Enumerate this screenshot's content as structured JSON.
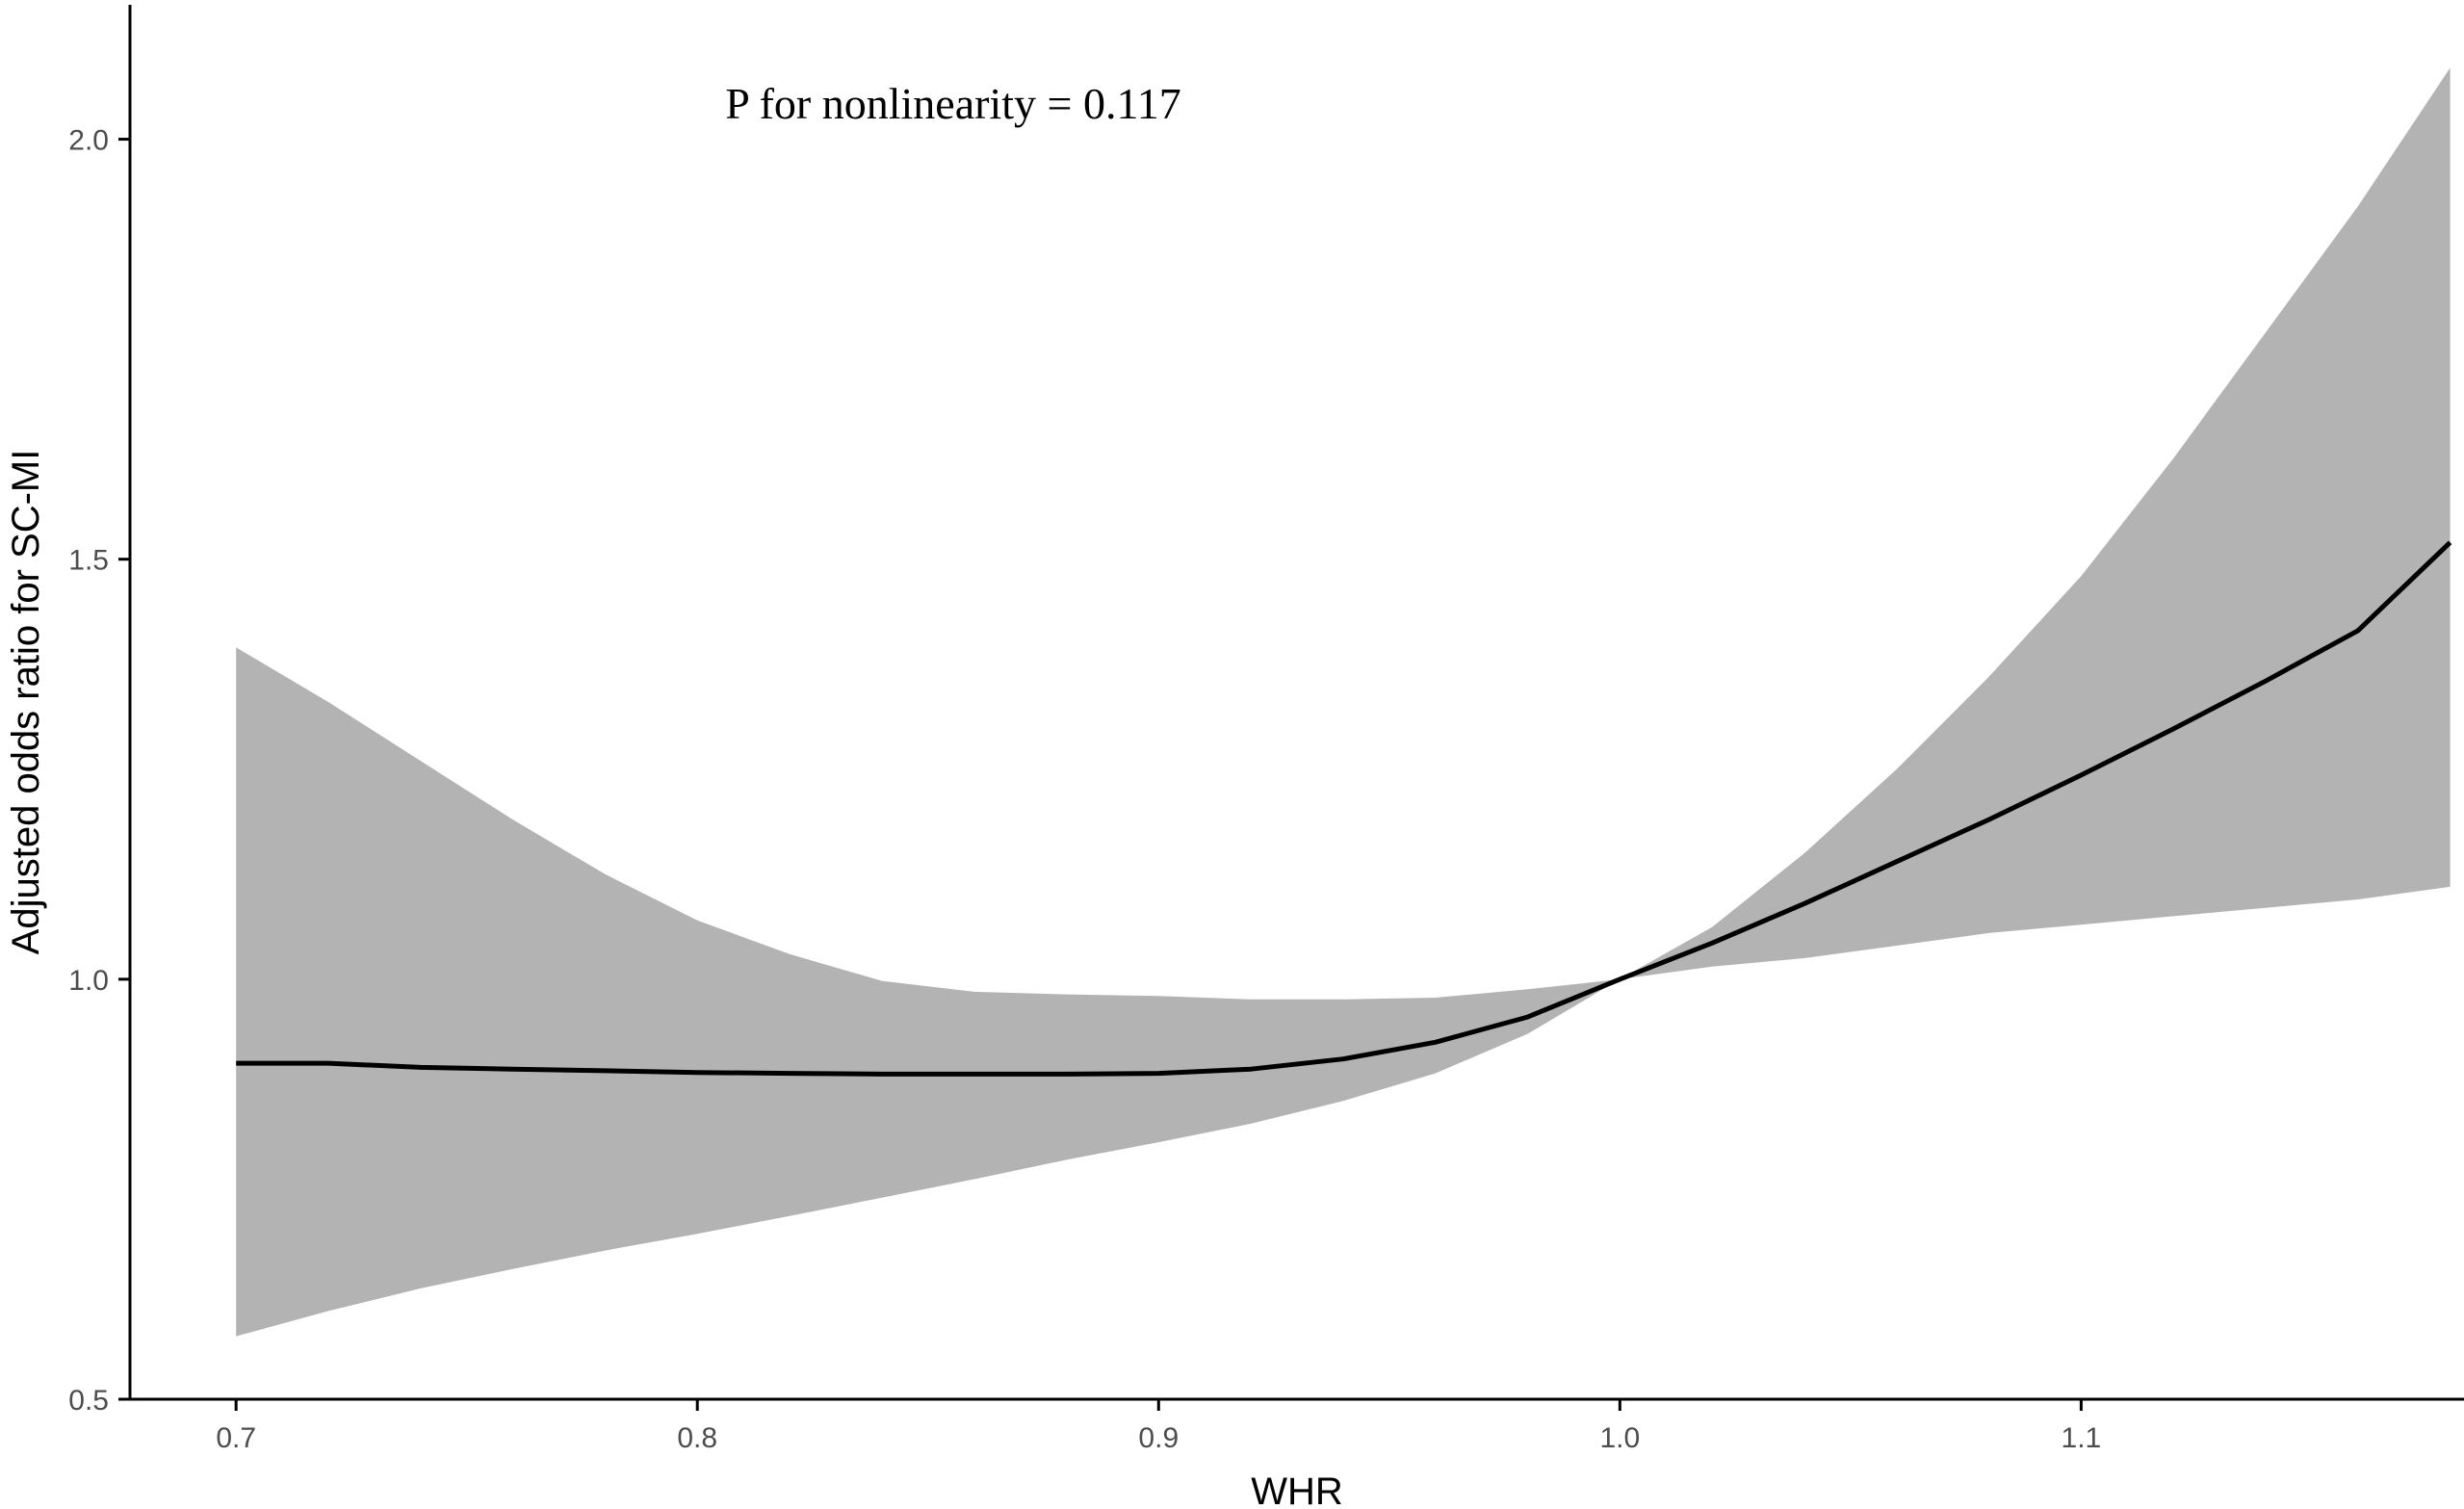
{
  "chart_data": {
    "type": "line",
    "title": "",
    "xlabel": "WHR",
    "ylabel": "Adjusted odds ratio for SC-MI",
    "annotation": "P for nonlinearity = 0.117",
    "xlim": [
      0.677,
      1.183
    ],
    "ylim": [
      0.5,
      2.16
    ],
    "x_ticks": [
      0.7,
      0.8,
      0.9,
      1.0,
      1.1
    ],
    "x_tick_labels": [
      "0.7",
      "0.8",
      "0.9",
      "1.0",
      "1.1"
    ],
    "y_ticks": [
      0.5,
      1.0,
      1.5,
      2.0
    ],
    "y_tick_labels": [
      "0.5",
      "1.0",
      "1.5",
      "2.0"
    ],
    "grid": false,
    "legend": "none",
    "colors": {
      "line": "#000000",
      "band": "#b3b3b3",
      "axis": "#000000",
      "tick_text": "#4d4d4d"
    },
    "series": [
      {
        "x": [
          0.7,
          0.72,
          0.74,
          0.76,
          0.78,
          0.8,
          0.82,
          0.84,
          0.86,
          0.88,
          0.9,
          0.92,
          0.94,
          0.96,
          0.98,
          1.0,
          1.02,
          1.04,
          1.06,
          1.08,
          1.1,
          1.12,
          1.14,
          1.16,
          1.18
        ],
        "y": [
          0.9,
          0.9,
          0.895,
          0.893,
          0.891,
          0.889,
          0.888,
          0.887,
          0.887,
          0.887,
          0.888,
          0.893,
          0.905,
          0.925,
          0.955,
          1.0,
          1.043,
          1.09,
          1.14,
          1.19,
          1.243,
          1.298,
          1.355,
          1.415,
          1.52
        ],
        "lower": [
          0.575,
          0.605,
          0.632,
          0.655,
          0.677,
          0.697,
          0.718,
          0.74,
          0.762,
          0.785,
          0.806,
          0.828,
          0.855,
          0.888,
          0.935,
          1.0,
          1.015,
          1.025,
          1.04,
          1.055,
          1.065,
          1.075,
          1.085,
          1.095,
          1.11
        ],
        "upper": [
          1.395,
          1.33,
          1.26,
          1.19,
          1.125,
          1.07,
          1.03,
          0.998,
          0.985,
          0.982,
          0.98,
          0.976,
          0.976,
          0.978,
          0.988,
          1.0,
          1.062,
          1.15,
          1.25,
          1.36,
          1.48,
          1.62,
          1.77,
          1.92,
          2.085
        ]
      }
    ]
  }
}
